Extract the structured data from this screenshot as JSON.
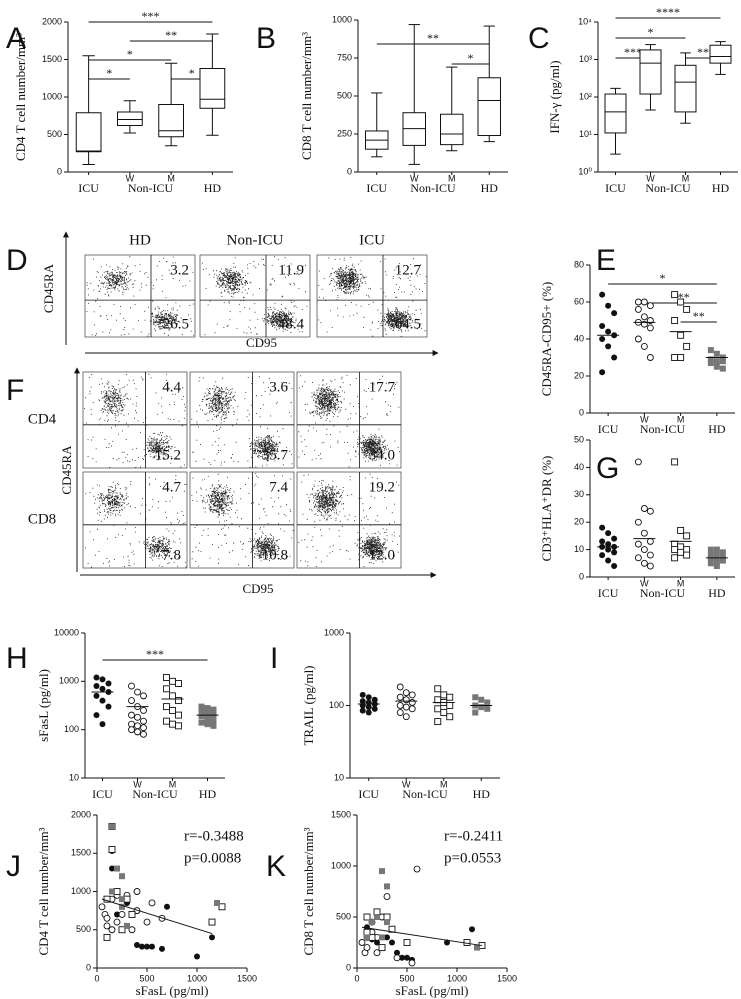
{
  "chart_data": [
    {
      "type": "box",
      "label": "A",
      "y_label": "CD4 T cell number/mm³",
      "categories": [
        "ICU",
        "W",
        "M",
        "HD"
      ],
      "group_label": "Non-ICU",
      "boxes": [
        {
          "min": 100,
          "q1": 270,
          "median": 280,
          "q3": 790,
          "max": 1550
        },
        {
          "min": 520,
          "q1": 620,
          "median": 700,
          "q3": 800,
          "max": 950
        },
        {
          "min": 350,
          "q1": 470,
          "median": 550,
          "q3": 900,
          "max": 1450
        },
        {
          "min": 490,
          "q1": 850,
          "median": 970,
          "q3": 1380,
          "max": 1840
        }
      ],
      "ylim": [
        0,
        2000
      ],
      "yticks": [
        0,
        500,
        1000,
        1500,
        2000
      ],
      "significance": [
        {
          "from": "ICU",
          "to": "HD",
          "label": "***"
        },
        {
          "from": "W",
          "to": "HD",
          "label": "**"
        },
        {
          "from": "ICU",
          "to": "M",
          "label": "*"
        },
        {
          "from": "M",
          "to": "HD",
          "label": "*"
        },
        {
          "from": "ICU",
          "to": "W",
          "label": "*"
        }
      ]
    },
    {
      "type": "box",
      "label": "B",
      "y_label": "CD8 T cell number/mm³",
      "categories": [
        "ICU",
        "W",
        "M",
        "HD"
      ],
      "group_label": "Non-ICU",
      "boxes": [
        {
          "min": 100,
          "q1": 150,
          "median": 210,
          "q3": 270,
          "max": 520
        },
        {
          "min": 50,
          "q1": 175,
          "median": 285,
          "q3": 390,
          "max": 970
        },
        {
          "min": 140,
          "q1": 180,
          "median": 250,
          "q3": 380,
          "max": 690
        },
        {
          "min": 200,
          "q1": 240,
          "median": 470,
          "q3": 620,
          "max": 960
        }
      ],
      "ylim": [
        0,
        1000
      ],
      "yticks": [
        0,
        250,
        500,
        750,
        1000
      ],
      "significance": [
        {
          "from": "ICU",
          "to": "HD",
          "label": "**"
        },
        {
          "from": "M",
          "to": "HD",
          "label": "*"
        }
      ]
    },
    {
      "type": "box",
      "label": "C",
      "y_label": "IFN-γ (pg/ml)",
      "log": true,
      "categories": [
        "ICU",
        "W",
        "M",
        "HD"
      ],
      "group_label": "Non-ICU",
      "boxes": [
        {
          "min": 3,
          "q1": 11,
          "median": 40,
          "q3": 120,
          "max": 170
        },
        {
          "min": 45,
          "q1": 120,
          "median": 800,
          "q3": 1800,
          "max": 2500
        },
        {
          "min": 20,
          "q1": 40,
          "median": 250,
          "q3": 700,
          "max": 1500
        },
        {
          "min": 400,
          "q1": 800,
          "median": 1200,
          "q3": 2400,
          "max": 3000
        }
      ],
      "ylim": [
        1,
        10000
      ],
      "yticks": [
        {
          "value": 1,
          "label": "10⁰"
        },
        {
          "value": 10,
          "label": "10¹"
        },
        {
          "value": 100,
          "label": "10²"
        },
        {
          "value": 1000,
          "label": "10³"
        },
        {
          "value": 10000,
          "label": "10⁴"
        }
      ],
      "significance": [
        {
          "from": "ICU",
          "to": "HD",
          "label": "****"
        },
        {
          "from": "ICU",
          "to": "M",
          "label": "*"
        },
        {
          "from": "M",
          "to": "HD",
          "label": "**"
        },
        {
          "from": "ICU",
          "to": "W",
          "label": "***"
        }
      ]
    },
    {
      "type": "flow",
      "label": "D",
      "x_label": "CD95",
      "y_label": "CD45RA",
      "columns": [
        "HD",
        "Non-ICU",
        "ICU"
      ],
      "rows": [
        {
          "cells": [
            {
              "upper_right": 3.2,
              "lower_right": 26.5
            },
            {
              "upper_right": 11.9,
              "lower_right": 48.4
            },
            {
              "upper_right": 12.7,
              "lower_right": 64.5
            }
          ]
        }
      ]
    },
    {
      "type": "dot",
      "label": "E",
      "y_label": "CD45RA-CD95+ (%)",
      "categories": [
        "ICU",
        "W",
        "M",
        "HD"
      ],
      "group_label": "Non-ICU",
      "markers": [
        "filled-circle",
        "open-circle",
        "open-square",
        "gray-square"
      ],
      "values": [
        [
          64,
          58,
          54,
          47,
          44,
          42,
          40,
          36,
          30,
          22
        ],
        [
          60,
          60,
          58,
          56,
          52,
          50,
          49,
          48,
          46,
          40,
          36,
          30
        ],
        [
          64,
          60,
          56,
          50,
          42,
          36,
          30,
          30
        ],
        [
          34,
          32,
          30,
          29,
          28,
          28,
          27,
          25,
          24
        ]
      ],
      "medians": [
        42,
        49,
        44,
        30
      ],
      "ylim": [
        0,
        80
      ],
      "yticks": [
        0,
        20,
        40,
        60,
        80
      ],
      "significance": [
        {
          "from": "ICU",
          "to": "HD",
          "label": "*"
        },
        {
          "from": "W",
          "to": "HD",
          "label": "***"
        },
        {
          "from": "M",
          "to": "HD",
          "label": "**"
        }
      ]
    },
    {
      "type": "flow",
      "label": "F",
      "x_label": "CD95",
      "y_label": "CD45RA",
      "rows": [
        {
          "name": "CD4",
          "cells": [
            {
              "upper_right": 4.4,
              "lower_right": 15.2
            },
            {
              "upper_right": 3.6,
              "lower_right": 35.7
            },
            {
              "upper_right": 17.7,
              "lower_right": {
                "value": 34,
                "label": "34.0"
              }
            }
          ]
        },
        {
          "name": "CD8",
          "cells": [
            {
              "upper_right": 4.7,
              "lower_right": 7.8
            },
            {
              "upper_right": 7.4,
              "lower_right": 10.8
            },
            {
              "upper_right": 19.2,
              "lower_right": {
                "value": 12,
                "label": "12.0"
              }
            }
          ]
        }
      ]
    },
    {
      "type": "dot",
      "label": "G",
      "y_label": "CD3⁺HLA⁺DR (%)",
      "categories": [
        "ICU",
        "W",
        "M",
        "HD"
      ],
      "group_label": "Non-ICU",
      "markers": [
        "filled-circle",
        "open-circle",
        "open-square",
        "gray-square"
      ],
      "values": [
        [
          18,
          16,
          14,
          13,
          12,
          11,
          11,
          10,
          9,
          8,
          6,
          4
        ],
        [
          42,
          25,
          24,
          20,
          16,
          13,
          12,
          10,
          8,
          7,
          5,
          4
        ],
        [
          42,
          17,
          15,
          12,
          11,
          10,
          10,
          9,
          8,
          7
        ],
        [
          10,
          10,
          9,
          8,
          8,
          7,
          7,
          6,
          6,
          5,
          4
        ]
      ],
      "medians": [
        11,
        14,
        13,
        7
      ],
      "ylim": [
        0,
        50
      ],
      "yticks": [
        0,
        10,
        20,
        30,
        40,
        50
      ]
    },
    {
      "type": "dot",
      "label": "H",
      "y_label": "sFasL (pg/ml)",
      "log": true,
      "categories": [
        "ICU",
        "W",
        "M",
        "HD"
      ],
      "group_label": "Non-ICU",
      "markers": [
        "filled-circle",
        "open-circle",
        "open-square",
        "gray-square"
      ],
      "values": [
        [
          1200,
          1100,
          900,
          800,
          700,
          600,
          500,
          400,
          300,
          200,
          130
        ],
        [
          800,
          600,
          500,
          400,
          300,
          250,
          200,
          180,
          150,
          130,
          120,
          110,
          100,
          90,
          80
        ],
        [
          1200,
          1000,
          900,
          700,
          500,
          400,
          300,
          250,
          200,
          150,
          130,
          120
        ],
        [
          300,
          280,
          260,
          250,
          230,
          200,
          190,
          170,
          150,
          140,
          130,
          120
        ]
      ],
      "medians": [
        600,
        300,
        430,
        200
      ],
      "ylim": [
        10,
        10000
      ],
      "yticks": [
        10,
        100,
        1000,
        10000
      ],
      "significance": [
        {
          "from": "ICU",
          "to": "HD",
          "label": "***"
        }
      ]
    },
    {
      "type": "dot",
      "label": "I",
      "y_label": "TRAIL (pg/ml)",
      "log": true,
      "categories": [
        "ICU",
        "W",
        "M",
        "HD"
      ],
      "group_label": "Non-ICU",
      "markers": [
        "filled-circle",
        "open-circle",
        "open-square",
        "gray-square"
      ],
      "values": [
        [
          140,
          130,
          120,
          115,
          110,
          105,
          100,
          95,
          90,
          85,
          80
        ],
        [
          180,
          150,
          140,
          130,
          120,
          110,
          100,
          95,
          90,
          80,
          70
        ],
        [
          170,
          140,
          130,
          120,
          110,
          100,
          90,
          80,
          70,
          60
        ],
        [
          130,
          120,
          110,
          100,
          95,
          90,
          80
        ]
      ],
      "medians": [
        105,
        115,
        110,
        100
      ],
      "ylim": [
        10,
        1000
      ],
      "yticks": [
        10,
        100,
        1000
      ]
    },
    {
      "type": "scatter",
      "label": "J",
      "x_label": "sFasL (pg/ml)",
      "y_label": "CD4 T cell number/mm³",
      "annotations": [
        "r=-0.3488",
        "p=0.0088"
      ],
      "series": [
        {
          "marker": "filled-circle",
          "x": [
            150,
            150,
            300,
            200,
            400,
            450,
            500,
            550,
            650,
            700,
            1000,
            1150
          ],
          "y": [
            1530,
            1300,
            850,
            700,
            300,
            280,
            280,
            280,
            250,
            800,
            150,
            400
          ]
        },
        {
          "marker": "open-circle",
          "x": [
            50,
            80,
            100,
            150,
            200,
            200,
            250,
            300,
            350,
            400,
            400,
            500,
            550,
            650,
            100,
            150
          ],
          "y": [
            800,
            700,
            550,
            900,
            950,
            600,
            700,
            950,
            500,
            750,
            1000,
            600,
            850,
            650,
            650,
            500
          ]
        },
        {
          "marker": "open-square",
          "x": [
            100,
            150,
            150,
            200,
            250,
            300,
            350,
            1150,
            1250,
            100
          ],
          "y": [
            400,
            1850,
            1550,
            1000,
            500,
            900,
            700,
            600,
            800,
            900
          ]
        },
        {
          "marker": "gray-square",
          "x": [
            150,
            250,
            200,
            250,
            250,
            150,
            1200,
            300
          ],
          "y": [
            1850,
            1200,
            1300,
            800,
            900,
            1000,
            850,
            550
          ]
        }
      ],
      "fit": {
        "x": [
          50,
          1150
        ],
        "y": [
          900,
          450
        ]
      },
      "xlim": [
        0,
        1500
      ],
      "xticks": [
        0,
        500,
        1000,
        1500
      ],
      "ylim": [
        0,
        2000
      ],
      "yticks": [
        0,
        500,
        1000,
        1500,
        2000
      ]
    },
    {
      "type": "scatter",
      "label": "K",
      "x_label": "sFasL (pg/ml)",
      "y_label": "CD8 T cell number/mm³",
      "annotations": [
        "r=-0.2411",
        "p=0.0553"
      ],
      "series": [
        {
          "marker": "filled-circle",
          "x": [
            150,
            200,
            300,
            350,
            400,
            450,
            500,
            550,
            900,
            1100,
            1150,
            100
          ],
          "y": [
            280,
            250,
            300,
            250,
            150,
            100,
            100,
            80,
            250,
            250,
            380,
            400
          ]
        },
        {
          "marker": "open-circle",
          "x": [
            50,
            80,
            100,
            150,
            200,
            250,
            300,
            400,
            600,
            550,
            100,
            200,
            150
          ],
          "y": [
            250,
            150,
            200,
            350,
            300,
            500,
            700,
            100,
            970,
            50,
            300,
            150,
            450
          ]
        },
        {
          "marker": "open-square",
          "x": [
            100,
            150,
            200,
            250,
            300,
            350,
            500,
            1100,
            1250,
            100
          ],
          "y": [
            500,
            300,
            550,
            200,
            500,
            380,
            250,
            250,
            220,
            350
          ]
        },
        {
          "marker": "gray-square",
          "x": [
            100,
            150,
            250,
            250,
            200,
            300,
            1200,
            300
          ],
          "y": [
            300,
            450,
            300,
            950,
            500,
            800,
            200,
            450
          ]
        }
      ],
      "fit": {
        "x": [
          50,
          1250
        ],
        "y": [
          400,
          220
        ]
      },
      "xlim": [
        0,
        1500
      ],
      "xticks": [
        0,
        500,
        1000,
        1500
      ],
      "ylim": [
        0,
        1500
      ],
      "yticks": [
        0,
        500,
        1000,
        1500
      ]
    }
  ]
}
